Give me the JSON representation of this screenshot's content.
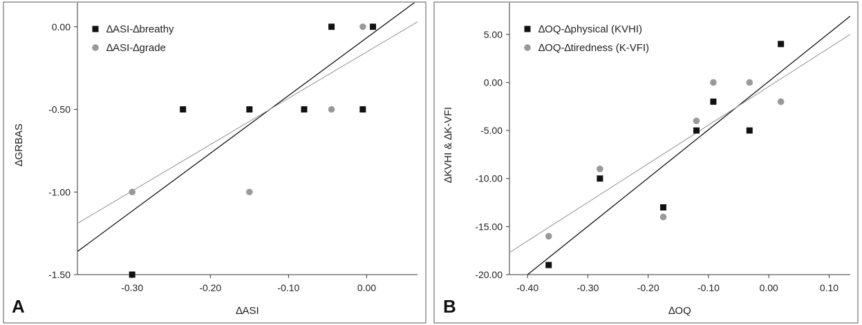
{
  "chart_data": [
    {
      "panel_label": "A",
      "type": "scatter",
      "xlabel": "∆ASI",
      "ylabel": "∆GRBAS",
      "xlim": [
        -0.37,
        0.065
      ],
      "ylim": [
        -1.5,
        0.07
      ],
      "xticks": [
        -0.3,
        -0.2,
        -0.1,
        0.0
      ],
      "xtick_labels": [
        "-0.30",
        "-0.20",
        "-0.10",
        "0.00"
      ],
      "yticks": [
        0.0,
        -0.5,
        -1.0,
        -1.5
      ],
      "ytick_labels": [
        "0.00",
        "-0.50",
        "-1.00",
        "-1.50"
      ],
      "grid": false,
      "legend_position": "top-left",
      "series": [
        {
          "name": "∆ASI-∆breathy",
          "marker": "square",
          "color": "#111111",
          "points": [
            [
              -0.3,
              -1.5
            ],
            [
              -0.235,
              -0.5
            ],
            [
              -0.15,
              -0.5
            ],
            [
              -0.08,
              -0.5
            ],
            [
              -0.045,
              0.0
            ],
            [
              -0.005,
              -0.5
            ],
            [
              0.008,
              0.0
            ]
          ],
          "trend_line": [
            [
              -0.37,
              -1.36
            ],
            [
              0.065,
              0.16
            ]
          ]
        },
        {
          "name": "∆ASI-∆grade",
          "marker": "circle",
          "color": "#999999",
          "points": [
            [
              -0.3,
              -1.0
            ],
            [
              -0.15,
              -1.0
            ],
            [
              -0.045,
              -0.5
            ],
            [
              -0.005,
              0.0
            ]
          ],
          "trend_line": [
            [
              -0.37,
              -1.19
            ],
            [
              0.065,
              0.03
            ]
          ]
        }
      ]
    },
    {
      "panel_label": "B",
      "type": "scatter",
      "xlabel": "∆OQ",
      "ylabel": "∆KVHI & ∆K-VFI",
      "xlim": [
        -0.43,
        0.135
      ],
      "ylim": [
        -20.0,
        7.0
      ],
      "xticks": [
        -0.4,
        -0.3,
        -0.2,
        -0.1,
        0.0,
        0.1
      ],
      "xtick_labels": [
        "-0.40",
        "-0.30",
        "-0.20",
        "-0.10",
        "0.00",
        "0.10"
      ],
      "yticks": [
        5.0,
        0.0,
        -5.0,
        -10.0,
        -15.0,
        -20.0
      ],
      "ytick_labels": [
        "5.00",
        "0.00",
        "-5.00",
        "-10.00",
        "-15.00",
        "-20.00"
      ],
      "grid": false,
      "legend_position": "top-left",
      "series": [
        {
          "name": "∆OQ-∆physical (KVHI)",
          "marker": "square",
          "color": "#111111",
          "points": [
            [
              -0.365,
              -19.0
            ],
            [
              -0.28,
              -10.0
            ],
            [
              -0.175,
              -13.0
            ],
            [
              -0.12,
              -5.0
            ],
            [
              -0.092,
              -2.0
            ],
            [
              -0.032,
              -5.0
            ],
            [
              0.02,
              4.0
            ]
          ],
          "trend_line": [
            [
              -0.4,
              -20.0
            ],
            [
              0.135,
              6.9
            ]
          ]
        },
        {
          "name": "∆OQ-∆tiredness (K-VFI)",
          "marker": "circle",
          "color": "#999999",
          "points": [
            [
              -0.365,
              -16.0
            ],
            [
              -0.28,
              -9.0
            ],
            [
              -0.175,
              -14.0
            ],
            [
              -0.12,
              -4.0
            ],
            [
              -0.092,
              0.0
            ],
            [
              -0.032,
              0.0
            ],
            [
              0.02,
              -2.0
            ]
          ],
          "trend_line": [
            [
              -0.43,
              -17.7
            ],
            [
              0.135,
              5.0
            ]
          ]
        }
      ]
    }
  ]
}
